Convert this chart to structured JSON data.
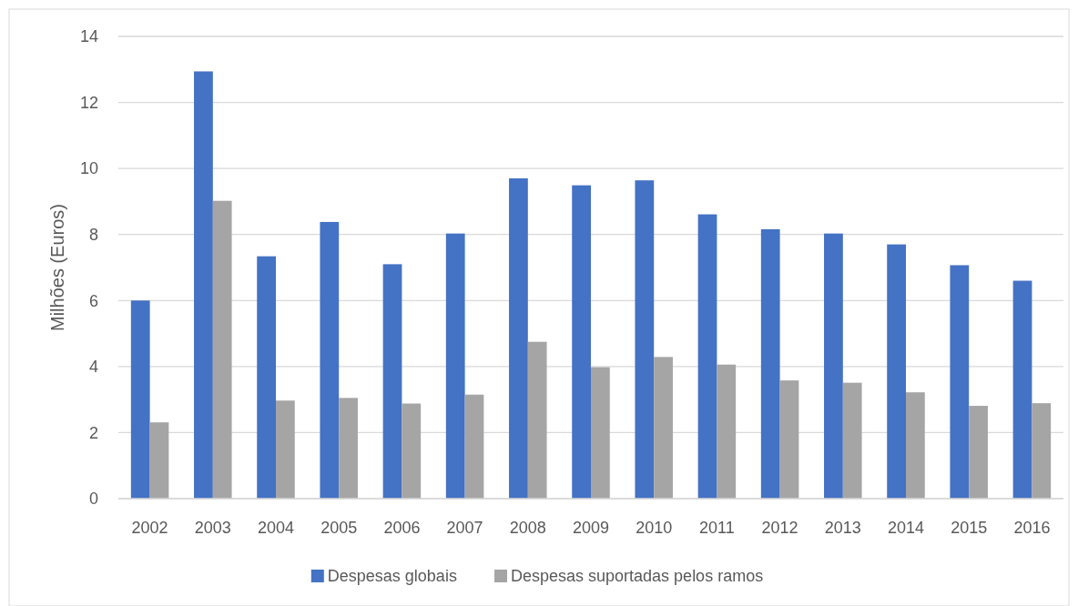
{
  "chart_data": {
    "type": "bar",
    "ylabel": "Milhões (Euros)",
    "categories": [
      "2002",
      "2003",
      "2004",
      "2005",
      "2006",
      "2007",
      "2008",
      "2009",
      "2010",
      "2011",
      "2012",
      "2013",
      "2014",
      "2015",
      "2016"
    ],
    "series": [
      {
        "name": "Despesas globais",
        "color": "#4472c4",
        "values": [
          6.0,
          12.94,
          7.34,
          8.38,
          7.1,
          8.03,
          9.7,
          9.49,
          9.64,
          8.61,
          8.16,
          8.03,
          7.7,
          7.07,
          6.6
        ]
      },
      {
        "name": "Despesas suportadas pelos ramos",
        "color": "#a5a5a5",
        "values": [
          2.31,
          9.02,
          2.97,
          3.05,
          2.88,
          3.15,
          4.75,
          3.98,
          4.29,
          4.06,
          3.58,
          3.51,
          3.22,
          2.81,
          2.89
        ]
      }
    ],
    "ylim": [
      0,
      14
    ],
    "yticks": [
      0,
      2,
      4,
      6,
      8,
      10,
      12,
      14
    ],
    "grid": "y",
    "legend": "bottom"
  }
}
